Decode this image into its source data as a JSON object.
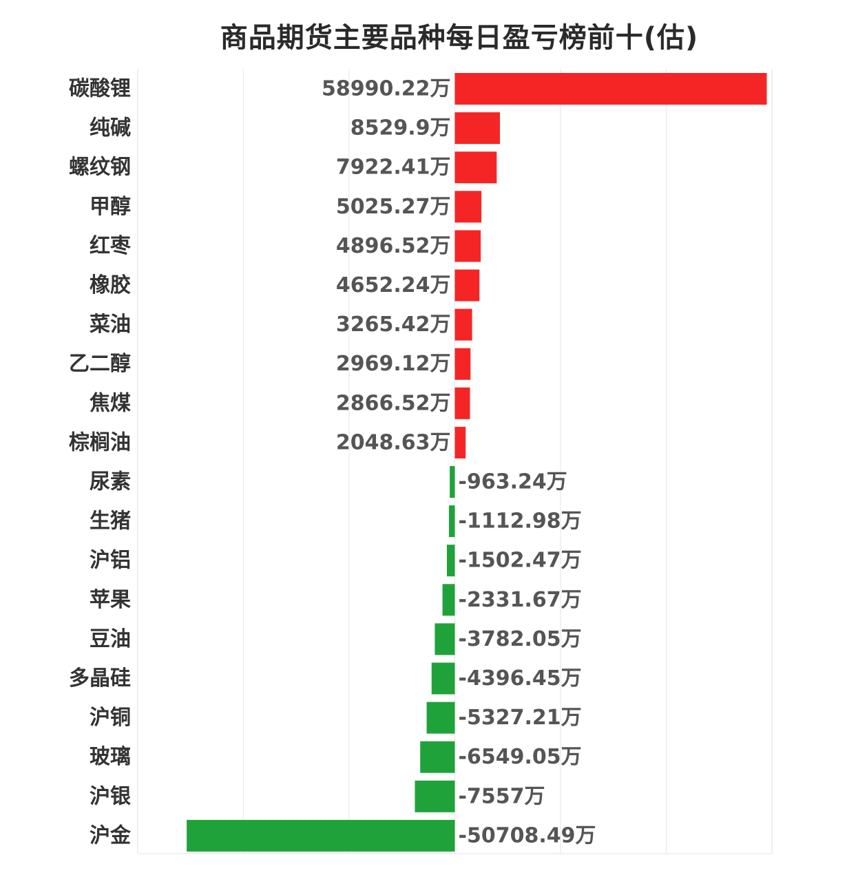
{
  "chart_data": {
    "type": "bar",
    "orientation": "horizontal",
    "title": "商品期货主要品种每日盈亏榜前十(估)",
    "value_unit": "万",
    "categories": [
      "碳酸锂",
      "纯碱",
      "螺纹钢",
      "甲醇",
      "红枣",
      "橡胶",
      "菜油",
      "乙二醇",
      "焦煤",
      "棕榈油",
      "尿素",
      "生猪",
      "沪铝",
      "苹果",
      "豆油",
      "多晶硅",
      "沪铜",
      "玻璃",
      "沪银",
      "沪金"
    ],
    "values": [
      58990.22,
      8529.9,
      7922.41,
      5025.27,
      4896.52,
      4652.24,
      3265.42,
      2969.12,
      2866.52,
      2048.63,
      -963.24,
      -1112.98,
      -1502.47,
      -2331.67,
      -3782.05,
      -4396.45,
      -5327.21,
      -6549.05,
      -7557,
      -50708.49
    ],
    "value_labels": [
      "58990.22万",
      "8529.9万",
      "7922.41万",
      "5025.27万",
      "4896.52万",
      "4652.24万",
      "3265.42万",
      "2969.12万",
      "2866.52万",
      "2048.63万",
      "-963.24万",
      "-1112.98万",
      "-1502.47万",
      "-2331.67万",
      "-3782.05万",
      "-4396.45万",
      "-5327.21万",
      "-6549.05万",
      "-7557万",
      "-50708.49万"
    ],
    "xlim": [
      -60000,
      60000
    ],
    "grid": true,
    "colors": {
      "positive": "#f52525",
      "negative": "#20a23b",
      "grid": "#e6e6e6"
    }
  }
}
